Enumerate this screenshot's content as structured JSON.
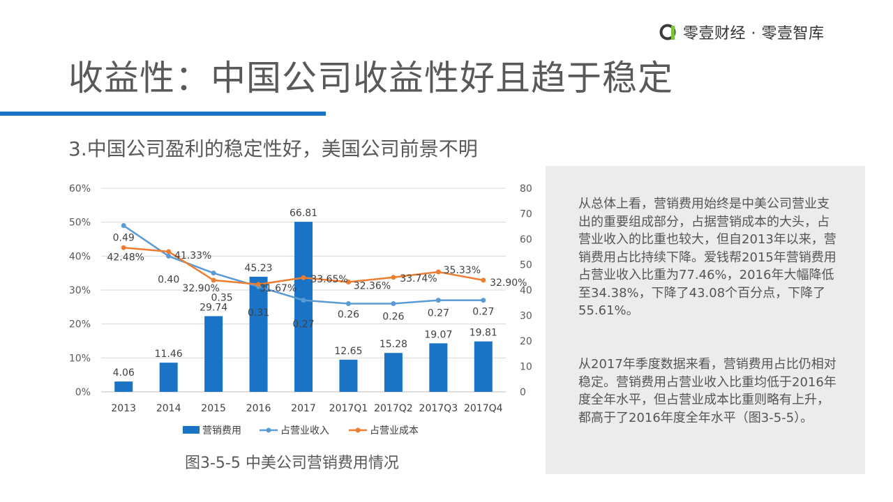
{
  "brand": {
    "name": "零壹财经 · 零壹智库"
  },
  "page": {
    "title": "收益性：中国公司收益性好且趋于稳定",
    "subtitle": "3.中国公司盈利的稳定性好，美国公司前景不明",
    "caption": "图3-5-5 中美公司营销费用情况"
  },
  "text_panel": {
    "paragraph1": "从总体上看，营销费用始终是中美公司营业支出的重要组成部分，占据营销成本的大头，占营业收入的比重也较大，但自2013年以来，营销费用占比持续下降。爱钱帮2015年营销费用占营业收入比重为77.46%，2016年大幅降低至34.38%，下降了43.08个百分点，下降了55.61%。",
    "paragraph2": "从2017年季度数据来看，营销费用占比仍相对稳定。营销费用占营业收入比重均低于2016年度全年水平，但占营业成本比重则略有上升，都高于了2016年度全年水平（图3-5-5）。"
  },
  "colors": {
    "bar": "#1a73c5",
    "line_revenue": "#5b9bd5",
    "line_cost": "#ed7d31",
    "accent_rule": "#1a73c5",
    "panel_bg": "#ececec"
  },
  "chart_data": {
    "type": "bar",
    "categories": [
      "2013",
      "2014",
      "2015",
      "2016",
      "2017",
      "2017Q1",
      "2017Q2",
      "2017Q3",
      "2017Q4"
    ],
    "y_left": {
      "ticks": [
        "0%",
        "10%",
        "20%",
        "30%",
        "40%",
        "50%",
        "60%"
      ],
      "ylim": [
        0,
        0.6
      ]
    },
    "y_right": {
      "ticks": [
        "0",
        "10",
        "20",
        "30",
        "40",
        "50",
        "60",
        "70",
        "80"
      ],
      "ylim": [
        0,
        80
      ]
    },
    "series": [
      {
        "name": "营销费用",
        "type": "bar",
        "axis": "right",
        "values": [
          4.06,
          11.46,
          29.74,
          45.23,
          66.81,
          12.65,
          15.28,
          19.07,
          19.81
        ],
        "labels": [
          "4.06",
          "11.46",
          "29.74",
          "45.23",
          "66.81",
          "12.65",
          "15.28",
          "19.07",
          "19.81"
        ]
      },
      {
        "name": "占营业收入",
        "type": "line",
        "axis": "left",
        "values": [
          0.49,
          0.4,
          0.35,
          0.31,
          0.27,
          0.26,
          0.26,
          0.27,
          0.27
        ],
        "labels": [
          "0.49",
          "0.40",
          "0.35",
          "0.31",
          "0.27",
          "0.26",
          "0.26",
          "0.27",
          "0.27"
        ]
      },
      {
        "name": "占营业成本",
        "type": "line",
        "axis": "left",
        "values": [
          0.4248,
          0.4133,
          0.329,
          0.3167,
          0.3365,
          0.3236,
          0.3374,
          0.3533,
          0.329
        ],
        "labels": [
          "42.48%",
          "41.33%",
          "32.90%",
          "31.67%",
          "33.65%",
          "32.36%",
          "33.74%",
          "35.33%",
          "32.90%"
        ]
      }
    ],
    "legend": "bottom",
    "grid": true
  }
}
